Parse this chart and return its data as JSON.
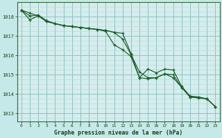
{
  "background_color": "#c5e8e8",
  "plot_background": "#d5eded",
  "grid_color_minor": "#b0d8d8",
  "grid_color_major": "#90c0c0",
  "line_color": "#1a5c28",
  "title": "Graphe pression niveau de la mer (hPa)",
  "xlim": [
    -0.5,
    23.5
  ],
  "ylim": [
    1012.6,
    1018.75
  ],
  "yticks": [
    1013,
    1014,
    1015,
    1016,
    1017,
    1018
  ],
  "xticks": [
    0,
    1,
    2,
    3,
    4,
    5,
    6,
    7,
    8,
    9,
    10,
    11,
    12,
    13,
    14,
    15,
    16,
    17,
    18,
    19,
    20,
    21,
    22,
    23
  ],
  "line1_x": [
    0,
    1,
    2,
    3,
    4,
    5,
    6,
    7,
    8,
    9,
    10,
    11,
    12,
    13,
    14,
    15,
    16,
    17,
    18,
    19,
    20,
    21,
    22,
    23
  ],
  "line1_y": [
    1018.35,
    1018.2,
    1018.05,
    1017.8,
    1017.65,
    1017.55,
    1017.5,
    1017.45,
    1017.4,
    1017.35,
    1017.3,
    1017.2,
    1017.15,
    1016.1,
    1014.85,
    1014.8,
    1014.85,
    1015.05,
    1015.0,
    1014.35,
    1013.85,
    1013.8,
    1013.75,
    1013.35
  ],
  "line2_x": [
    0,
    1,
    2,
    3,
    4,
    5,
    6,
    7,
    8,
    9,
    10,
    11,
    12,
    13,
    14,
    15,
    16,
    17,
    18,
    19,
    20,
    21,
    22,
    23
  ],
  "line2_y": [
    1018.35,
    1017.85,
    1018.05,
    1017.75,
    1017.65,
    1017.55,
    1017.5,
    1017.45,
    1017.4,
    1017.35,
    1017.3,
    1017.2,
    1016.85,
    1016.05,
    1015.15,
    1014.85,
    1014.85,
    1015.05,
    1014.85,
    1014.35,
    1013.85,
    1013.85,
    1013.75,
    1013.35
  ],
  "line3_x": [
    0,
    1,
    2,
    3,
    4,
    5,
    6,
    7,
    8,
    9,
    10,
    11,
    12,
    13,
    14,
    15,
    16,
    17,
    18,
    19,
    20,
    21,
    22,
    23
  ],
  "line3_y": [
    1018.35,
    1018.05,
    1018.1,
    1017.8,
    1017.65,
    1017.55,
    1017.5,
    1017.45,
    1017.4,
    1017.35,
    1017.25,
    1016.55,
    1016.3,
    1015.95,
    1014.85,
    1015.3,
    1015.1,
    1015.3,
    1015.25,
    1014.4,
    1013.9,
    1013.85,
    1013.75,
    1013.35
  ]
}
